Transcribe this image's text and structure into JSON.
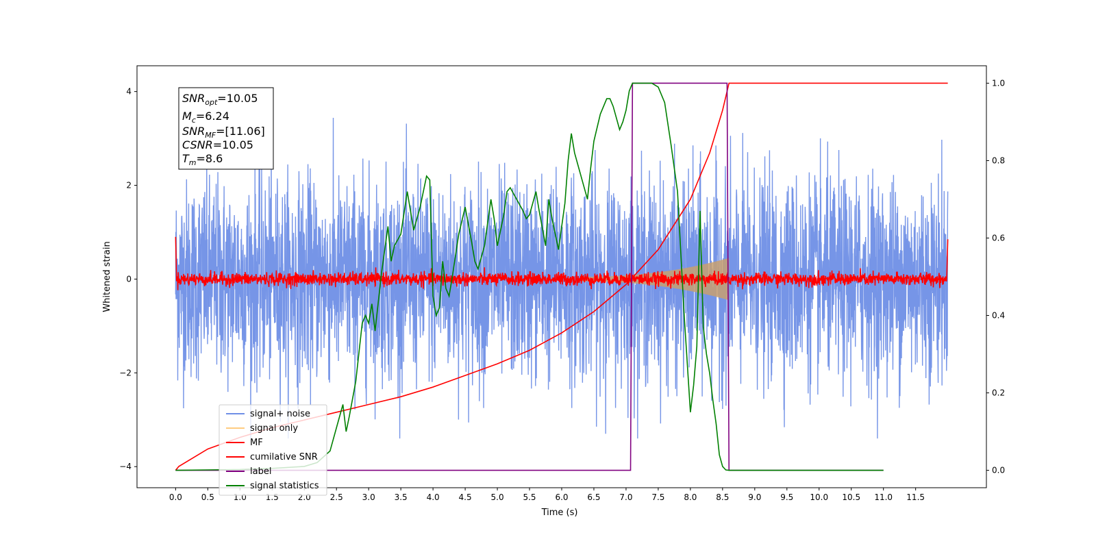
{
  "chart_data": {
    "type": "line",
    "title": "",
    "xlabel": "Time (s)",
    "ylabel": "Whitened strain",
    "xlim": [
      -0.6,
      12.6
    ],
    "ylim": [
      -4.45,
      4.55
    ],
    "y2lim": [
      -0.045,
      1.045
    ],
    "x_ticks": [
      "0.0",
      "0.5",
      "1.0",
      "1.5",
      "2.0",
      "2.5",
      "3.0",
      "3.5",
      "4.0",
      "4.5",
      "5.0",
      "5.5",
      "6.0",
      "6.5",
      "7.0",
      "7.5",
      "8.0",
      "8.5",
      "9.0",
      "9.5",
      "10.0",
      "10.5",
      "11.0",
      "11.5"
    ],
    "y_ticks": [
      "−4",
      "−2",
      "0",
      "2",
      "4"
    ],
    "y2_ticks": [
      "0.0",
      "0.2",
      "0.4",
      "0.6",
      "0.8",
      "1.0"
    ],
    "grid": false,
    "legend_position": "lower-left",
    "annotation": {
      "snr_opt": {
        "var": "SNR",
        "sub": "opt",
        "value": "=10.05"
      },
      "mc": {
        "var": "M",
        "sub": "c",
        "value": "=6.24"
      },
      "snr_mf": {
        "var": "SNR",
        "sub": "MF",
        "value": "=[11.06]"
      },
      "csnr": {
        "var": "CSNR",
        "value": "=10.05"
      },
      "tm": {
        "var": "T",
        "sub": "m",
        "value": "=8.6"
      }
    },
    "series": [
      {
        "name": "signal+ noise",
        "color": "#6f8fe6",
        "axis": "left",
        "note": "white noise, amplitude approx ±3"
      },
      {
        "name": "signal only",
        "color": "#ffcc80",
        "axis": "left",
        "envelope": {
          "t_start": 6.3,
          "t_end": 8.6,
          "amp_start": 0.05,
          "amp_end": 0.45
        }
      },
      {
        "name": "MF",
        "color": "#ff0000",
        "axis": "left",
        "note": "noise around 0, amplitude approx ±0.15"
      },
      {
        "name": "cumilative SNR",
        "color": "#ff0000",
        "axis": "right",
        "x": [
          0.0,
          0.05,
          0.5,
          1.0,
          1.5,
          2.0,
          2.5,
          3.0,
          3.5,
          4.0,
          4.5,
          5.0,
          5.5,
          6.0,
          6.5,
          7.0,
          7.5,
          8.0,
          8.3,
          8.5,
          8.6,
          12.0
        ],
        "y": [
          0.0,
          0.01,
          0.055,
          0.085,
          0.11,
          0.13,
          0.15,
          0.17,
          0.19,
          0.215,
          0.245,
          0.275,
          0.31,
          0.355,
          0.41,
          0.48,
          0.57,
          0.7,
          0.82,
          0.93,
          1.0,
          1.0
        ]
      },
      {
        "name": "label",
        "color": "#800080",
        "axis": "right",
        "x": [
          0.0,
          7.07,
          7.1,
          8.57,
          8.6,
          11.0
        ],
        "y": [
          0.0,
          0.0,
          1.0,
          1.0,
          0.0,
          0.0
        ]
      },
      {
        "name": "signal statistics",
        "color": "#008000",
        "axis": "right",
        "x": [
          0.0,
          0.5,
          1.0,
          1.5,
          2.0,
          2.2,
          2.4,
          2.5,
          2.6,
          2.65,
          2.7,
          2.8,
          2.9,
          2.95,
          3.0,
          3.05,
          3.1,
          3.2,
          3.3,
          3.35,
          3.4,
          3.5,
          3.6,
          3.7,
          3.8,
          3.9,
          3.95,
          4.0,
          4.05,
          4.1,
          4.15,
          4.2,
          4.25,
          4.3,
          4.4,
          4.5,
          4.6,
          4.65,
          4.7,
          4.8,
          4.9,
          4.95,
          5.0,
          5.1,
          5.15,
          5.2,
          5.3,
          5.4,
          5.45,
          5.5,
          5.6,
          5.65,
          5.75,
          5.8,
          5.85,
          5.9,
          5.95,
          6.05,
          6.1,
          6.15,
          6.2,
          6.3,
          6.4,
          6.45,
          6.5,
          6.6,
          6.7,
          6.75,
          6.8,
          6.9,
          6.95,
          7.0,
          7.05,
          7.1,
          7.2,
          7.3,
          7.4,
          7.5,
          7.6,
          7.7,
          7.8,
          7.9,
          8.0,
          8.05,
          8.1,
          8.15,
          8.2,
          8.25,
          8.3,
          8.35,
          8.4,
          8.45,
          8.5,
          8.55,
          8.6,
          8.65,
          8.7,
          8.75,
          8.8,
          8.9,
          9.0,
          10.0,
          11.0
        ],
        "y": [
          0.0,
          0.001,
          0.002,
          0.005,
          0.01,
          0.02,
          0.05,
          0.11,
          0.17,
          0.1,
          0.14,
          0.23,
          0.38,
          0.4,
          0.38,
          0.43,
          0.36,
          0.51,
          0.63,
          0.54,
          0.58,
          0.61,
          0.72,
          0.62,
          0.68,
          0.76,
          0.75,
          0.45,
          0.4,
          0.42,
          0.54,
          0.47,
          0.45,
          0.5,
          0.61,
          0.68,
          0.59,
          0.54,
          0.52,
          0.58,
          0.7,
          0.65,
          0.58,
          0.66,
          0.72,
          0.73,
          0.7,
          0.67,
          0.65,
          0.66,
          0.72,
          0.67,
          0.58,
          0.7,
          0.65,
          0.61,
          0.57,
          0.69,
          0.8,
          0.87,
          0.82,
          0.76,
          0.7,
          0.78,
          0.85,
          0.92,
          0.96,
          0.96,
          0.94,
          0.88,
          0.9,
          0.93,
          0.98,
          1.0,
          1.0,
          1.0,
          1.0,
          0.99,
          0.95,
          0.84,
          0.72,
          0.41,
          0.15,
          0.22,
          0.32,
          0.67,
          0.37,
          0.3,
          0.25,
          0.18,
          0.12,
          0.04,
          0.01,
          0.001,
          0.0,
          0.0,
          0.0,
          0.0,
          0.0,
          0.0,
          0.0,
          0.0,
          0.0
        ]
      }
    ]
  }
}
